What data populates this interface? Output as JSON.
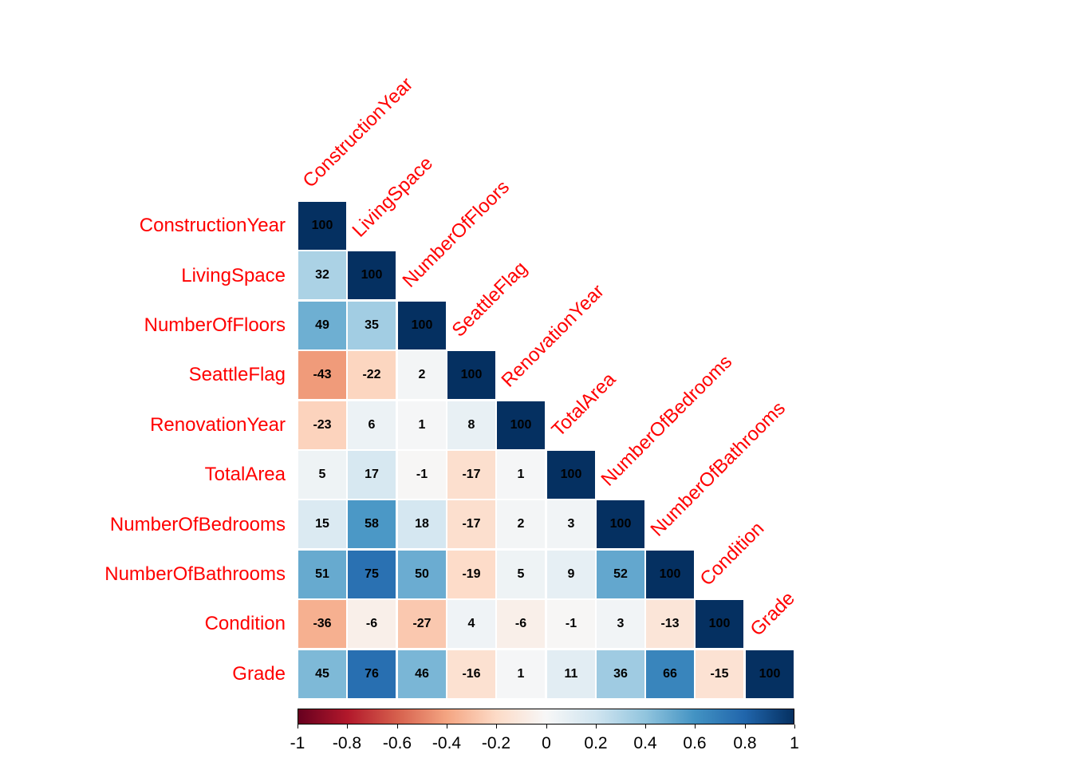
{
  "chart_data": {
    "type": "heatmap",
    "title": "",
    "variables": [
      "ConstructionYear",
      "LivingSpace",
      "NumberOfFloors",
      "SeattleFlag",
      "RenovationYear",
      "TotalArea",
      "NumberOfBedrooms",
      "NumberOfBathrooms",
      "Condition",
      "Grade"
    ],
    "matrix": [
      [
        100
      ],
      [
        32,
        100
      ],
      [
        49,
        35,
        100
      ],
      [
        -43,
        -22,
        2,
        100
      ],
      [
        -23,
        6,
        1,
        8,
        100
      ],
      [
        5,
        17,
        -1,
        -17,
        1,
        100
      ],
      [
        15,
        58,
        18,
        -17,
        2,
        3,
        100
      ],
      [
        51,
        75,
        50,
        -19,
        5,
        9,
        52,
        100
      ],
      [
        -36,
        -6,
        -27,
        4,
        -6,
        -1,
        3,
        -13,
        100
      ],
      [
        45,
        76,
        46,
        -16,
        1,
        11,
        36,
        66,
        -15,
        100
      ]
    ],
    "colorbar": {
      "min": -1,
      "max": 1,
      "ticks": [
        "-1",
        "-0.8",
        "-0.6",
        "-0.4",
        "-0.2",
        "0",
        "0.2",
        "0.4",
        "0.6",
        "0.8",
        "1"
      ],
      "palette": [
        "#67001F",
        "#B2182B",
        "#D6604D",
        "#F4A582",
        "#FDDBC7",
        "#F7F7F7",
        "#D1E5F0",
        "#92C5DE",
        "#4393C3",
        "#2166AC",
        "#053061"
      ]
    },
    "label_color": "#FF0000",
    "value_color": "#000000"
  }
}
